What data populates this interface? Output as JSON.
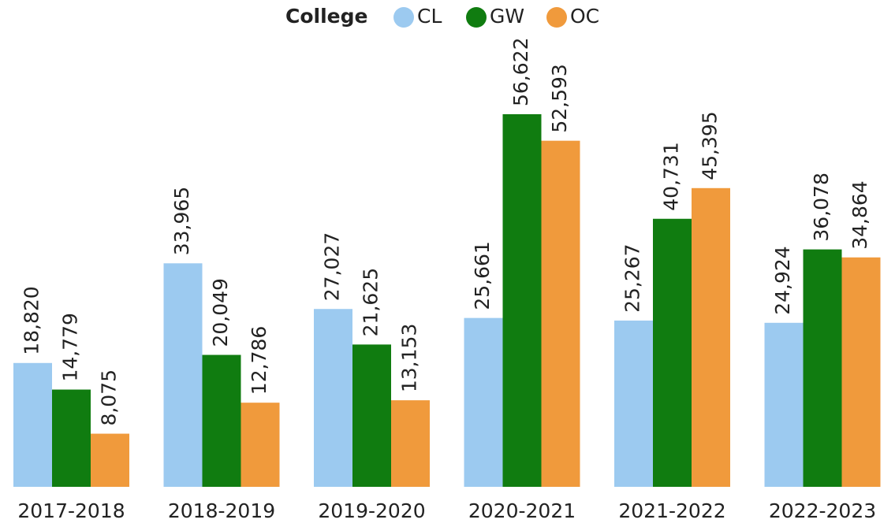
{
  "chart_data": {
    "type": "bar",
    "legend_title": "College",
    "categories": [
      "2017-2018",
      "2018-2019",
      "2019-2020",
      "2020-2021",
      "2021-2022",
      "2022-2023"
    ],
    "series": [
      {
        "name": "CL",
        "color": "#9ccaf0",
        "values": [
          18820,
          33965,
          27027,
          25661,
          25267,
          24924
        ],
        "value_labels": [
          "18,820",
          "33,965",
          "27,027",
          "25,661",
          "25,267",
          "24,924"
        ]
      },
      {
        "name": "GW",
        "color": "#107c10",
        "values": [
          14779,
          20049,
          21625,
          56622,
          40731,
          36078
        ],
        "value_labels": [
          "14,779",
          "20,049",
          "21,625",
          "56,622",
          "40,731",
          "36,078"
        ]
      },
      {
        "name": "OC",
        "color": "#f09a3c",
        "values": [
          8075,
          12786,
          13153,
          52593,
          45395,
          34864
        ],
        "value_labels": [
          "8,075",
          "12,786",
          "13,153",
          "52,593",
          "45,395",
          "34,864"
        ]
      }
    ],
    "legend": "top"
  }
}
